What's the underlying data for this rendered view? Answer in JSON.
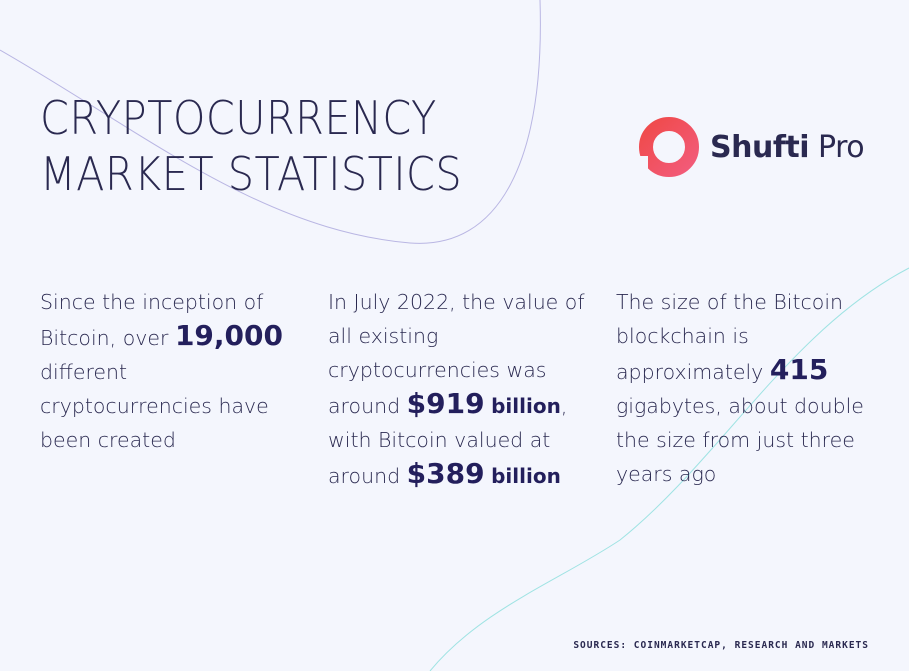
{
  "title": {
    "line1": "CRYPTOCURRENCY",
    "line2": "MARKET STATISTICS"
  },
  "logo": {
    "icon": "shufti-ring-logo",
    "brand_bold": "Shufti",
    "brand_regular": " Pro"
  },
  "stats": [
    {
      "pre": "Since the inception of Bitcoin, over",
      "value": "19,000",
      "post": "different cryptocurrencies have been created"
    },
    {
      "pre1": "In July 2022, the value of all existing cryptocurrencies was around",
      "value1": "$919",
      "unit1": "billion",
      "mid": ", with Bitcoin valued at around",
      "value2": "$389",
      "unit2": "billion"
    },
    {
      "pre": "The size of the Bitcoin blockchain is approximately",
      "value": "415",
      "post": "gigabytes, about double the size from just three years ago"
    }
  ],
  "sources": "SOURCES: COINMARKETCAP, RESEARCH AND MARKETS",
  "colors": {
    "background": "#f4f6fd",
    "text": "#2a2950",
    "accent_red": "#f04a4a",
    "accent_pink": "#f25b7a",
    "line_purple": "#b9b6e3",
    "line_teal": "#9fe3e3"
  }
}
